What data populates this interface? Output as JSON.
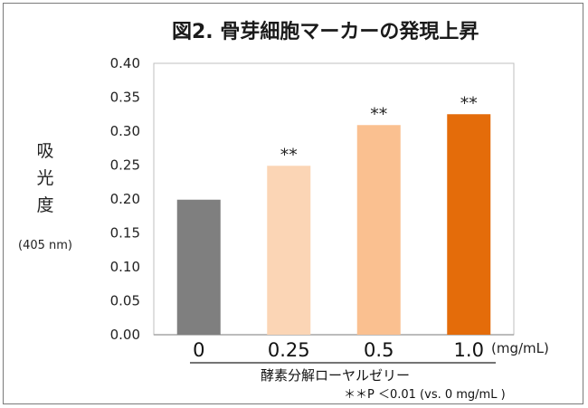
{
  "chart_data": {
    "type": "bar",
    "title": "図2.  骨芽細胞マーカーの発現上昇",
    "categories": [
      "0",
      "0.25",
      "0.5",
      "1.0"
    ],
    "values": [
      0.199,
      0.249,
      0.309,
      0.325
    ],
    "colors": [
      "#7f7f7f",
      "#fbd5b5",
      "#fac090",
      "#e46c0a"
    ],
    "significance": [
      "",
      "**",
      "**",
      "**"
    ],
    "ylabel_chars": [
      "吸",
      "光",
      "度"
    ],
    "ylabel_sub": "(405 nm)",
    "xlabel": "酵素分解ローヤルゼリー",
    "x_unit": "(mg/mL)",
    "ylim": [
      0,
      0.4
    ],
    "yticks": [
      "0.00",
      "0.05",
      "0.10",
      "0.15",
      "0.20",
      "0.25",
      "0.30",
      "0.35",
      "0.40"
    ],
    "grid": false,
    "footnote": "＊＊P ＜0.01  (vs. 0 mg/mL )",
    "colors_meta": {
      "axis": "#a6a6a6",
      "plot_border": "#bfbfbf"
    }
  }
}
